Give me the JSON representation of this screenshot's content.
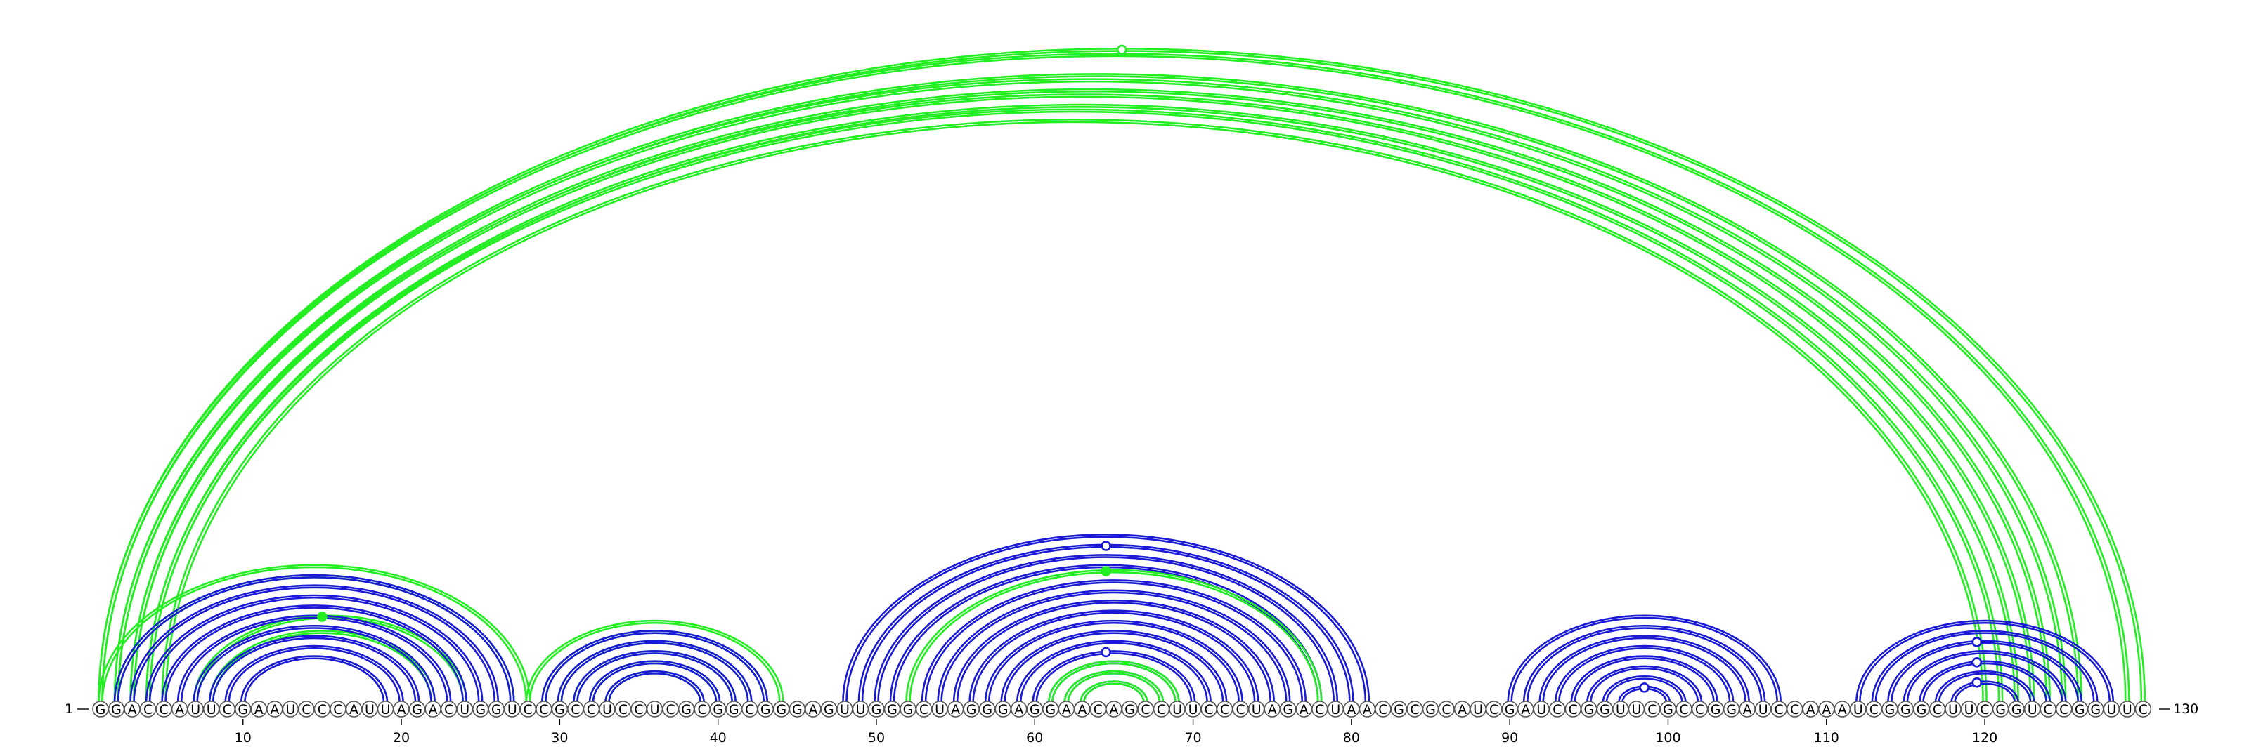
{
  "sequence": "GGACCAUUCGAAUCCCAUUAGACUGGUCCGCCUCCUCGCGGCGGGAGUUGGGCUAGGGAGGAACAGCCUUCCCUAGACUAACGCGCAUCGAUCCGGUUCGCCGGAUCCAAAUCGGGCUUCGGUCCGGUUC",
  "start_label": "1",
  "end_label": "130",
  "ticks": [
    10,
    20,
    30,
    40,
    50,
    60,
    70,
    80,
    90,
    100,
    110,
    120
  ],
  "colors": {
    "green": "#22ee22",
    "blue": "#1a1ad6",
    "outline": "#555555",
    "text": "#000000"
  },
  "arc_groups": [
    {
      "name": "long-range-green",
      "color": "green",
      "pairs": [
        [
          1,
          130
        ],
        [
          1,
          129
        ],
        [
          2,
          126
        ],
        [
          2,
          125
        ],
        [
          3,
          124
        ],
        [
          3,
          123
        ],
        [
          4,
          122
        ],
        [
          4,
          121
        ],
        [
          5,
          120
        ]
      ]
    },
    {
      "name": "hairpin-1-green",
      "color": "green",
      "pairs": [
        [
          1,
          28
        ],
        [
          2,
          27
        ],
        [
          7,
          24
        ],
        [
          8,
          22
        ]
      ]
    },
    {
      "name": "hairpin-1-blue",
      "color": "blue",
      "pairs": [
        [
          2,
          27
        ],
        [
          3,
          26
        ],
        [
          4,
          25
        ],
        [
          5,
          24
        ],
        [
          6,
          23
        ],
        [
          7,
          22
        ],
        [
          8,
          21
        ],
        [
          9,
          20
        ],
        [
          10,
          19
        ]
      ]
    },
    {
      "name": "hairpin-2-green",
      "color": "green",
      "pairs": [
        [
          28,
          44
        ],
        [
          29,
          43
        ],
        [
          30,
          42
        ],
        [
          31,
          41
        ],
        [
          32,
          40
        ],
        [
          33,
          39
        ]
      ]
    },
    {
      "name": "hairpin-2-blue",
      "color": "blue",
      "pairs": [
        [
          29,
          43
        ],
        [
          30,
          42
        ],
        [
          31,
          41
        ],
        [
          32,
          40
        ],
        [
          33,
          39
        ]
      ]
    },
    {
      "name": "hairpin-3-blue",
      "color": "blue",
      "pairs": [
        [
          48,
          81
        ],
        [
          49,
          80
        ],
        [
          50,
          79
        ],
        [
          51,
          78
        ],
        [
          53,
          77
        ],
        [
          54,
          76
        ],
        [
          55,
          75
        ],
        [
          56,
          74
        ],
        [
          57,
          73
        ],
        [
          58,
          72
        ],
        [
          59,
          71
        ],
        [
          60,
          70
        ],
        [
          61,
          69
        ],
        [
          62,
          68
        ],
        [
          63,
          67
        ]
      ]
    },
    {
      "name": "hairpin-3-green",
      "color": "green",
      "pairs": [
        [
          52,
          78
        ],
        [
          61,
          69
        ],
        [
          62,
          68
        ],
        [
          63,
          67
        ]
      ]
    },
    {
      "name": "hairpin-4-blue",
      "color": "blue",
      "pairs": [
        [
          90,
          107
        ],
        [
          91,
          106
        ],
        [
          92,
          105
        ],
        [
          93,
          104
        ],
        [
          94,
          103
        ],
        [
          95,
          102
        ],
        [
          96,
          101
        ],
        [
          97,
          100
        ]
      ]
    },
    {
      "name": "hairpin-5-blue",
      "color": "blue",
      "pairs": [
        [
          112,
          128
        ],
        [
          113,
          127
        ],
        [
          114,
          126
        ],
        [
          115,
          125
        ],
        [
          116,
          124
        ],
        [
          117,
          123
        ],
        [
          118,
          122
        ]
      ]
    }
  ],
  "markers": [
    {
      "position": 65.5,
      "height_of_pair": [
        1,
        130
      ],
      "color": "green",
      "filled": false
    },
    {
      "position": 15,
      "height_of_pair": [
        7,
        24
      ],
      "color": "green",
      "filled": true
    },
    {
      "position": 64.5,
      "height_of_pair": [
        49,
        80
      ],
      "color": "blue",
      "filled": false
    },
    {
      "position": 64.5,
      "height_of_pair": [
        52,
        78
      ],
      "color": "green",
      "filled": true
    },
    {
      "position": 64.5,
      "height_of_pair": [
        60,
        70
      ],
      "color": "blue",
      "filled": false
    },
    {
      "position": 98.5,
      "height_of_pair": [
        97,
        100
      ],
      "color": "blue",
      "filled": false
    },
    {
      "position": 119.5,
      "height_of_pair": [
        114,
        126
      ],
      "color": "blue",
      "filled": false
    },
    {
      "position": 119.5,
      "height_of_pair": [
        116,
        124
      ],
      "color": "blue",
      "filled": false
    },
    {
      "position": 119.5,
      "height_of_pair": [
        118,
        122
      ],
      "color": "blue",
      "filled": false
    }
  ]
}
